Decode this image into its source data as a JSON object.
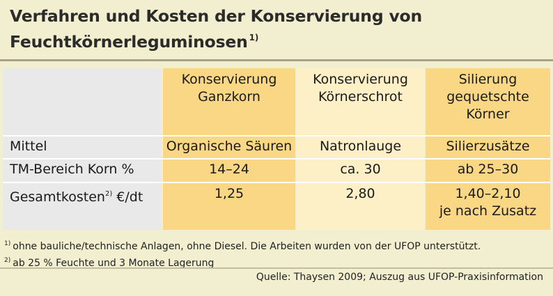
{
  "title": {
    "line1": "Verfahren und Kosten der Konservierung von",
    "line2": "Feuchtkörnerleguminosen",
    "sup": "1)"
  },
  "table": {
    "headers": [
      [
        "Konservierung",
        "Ganzkorn"
      ],
      [
        "Konservierung",
        "Körnerschrot"
      ],
      [
        "Silierung",
        "gequetschte",
        "Körner"
      ]
    ],
    "rows": [
      {
        "label": "Mittel",
        "label_sup": "",
        "unit": "",
        "values": [
          [
            "Organische Säuren"
          ],
          [
            "Natronlauge"
          ],
          [
            "Silierzusätze"
          ]
        ]
      },
      {
        "label": "TM-Bereich Korn",
        "label_sup": "",
        "unit": "%",
        "values": [
          [
            "14–24"
          ],
          [
            "ca. 30"
          ],
          [
            "ab 25–30"
          ]
        ]
      },
      {
        "label": "Gesamtkosten",
        "label_sup": "2)",
        "unit": "€/dt",
        "values": [
          [
            "1,25"
          ],
          [
            "2,80"
          ],
          [
            "1,40–2,10",
            "je nach Zusatz"
          ]
        ]
      }
    ]
  },
  "footnotes": [
    {
      "mark": "1)",
      "text": "ohne bauliche/technische Anlagen, ohne Diesel. Die Arbeiten wurden von der UFOP unterstützt."
    },
    {
      "mark": "2)",
      "text": "ab 25 % Feuchte und 3 Monate Lagerung"
    }
  ],
  "source": "Quelle: Thaysen 2009; Auszug aus UFOP-Praxisinformation",
  "colors": {
    "background": "#f1efcf",
    "label_column": "#e9e9ea",
    "accent_orange": "#fad785",
    "accent_light": "#fdf0c7"
  }
}
